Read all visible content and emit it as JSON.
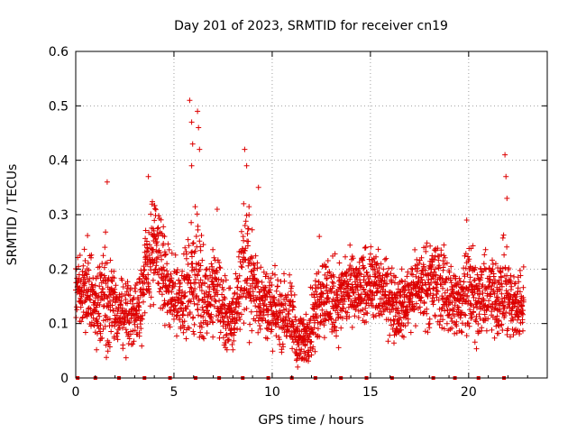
{
  "chart_data": {
    "type": "scatter",
    "title": "Day 201 of 2023, SRMTID for receiver cn19",
    "xlabel": "GPS time / hours",
    "ylabel": "SRMTID / TECUs",
    "xlim": [
      0,
      24
    ],
    "ylim": [
      0,
      0.6
    ],
    "xticks": [
      0,
      5,
      10,
      15,
      20
    ],
    "yticks": [
      0,
      0.1,
      0.2,
      0.3,
      0.4,
      0.5,
      0.6
    ],
    "xtick_labels": [
      "0",
      "5",
      "10",
      "15",
      "20"
    ],
    "ytick_labels": [
      "0",
      "0.1",
      "0.2",
      "0.3",
      "0.4",
      "0.5",
      "0.6"
    ],
    "grid": true,
    "marker": "+",
    "color": "#dd0000",
    "zero_markers_x": [
      0.1,
      1.0,
      2.2,
      3.5,
      4.8,
      6.1,
      7.3,
      8.5,
      9.8,
      11.0,
      12.2,
      13.5,
      14.8,
      16.1,
      18.2,
      19.3,
      20.5,
      21.8
    ],
    "envelope": {
      "x": [
        0.0,
        0.3,
        0.6,
        1.0,
        1.5,
        2.0,
        2.5,
        3.0,
        3.5,
        3.9,
        4.3,
        4.8,
        5.3,
        5.8,
        6.0,
        6.3,
        6.7,
        7.2,
        7.6,
        8.0,
        8.5,
        8.8,
        9.1,
        9.5,
        10.0,
        10.5,
        11.0,
        11.3,
        11.6,
        12.0,
        12.5,
        13.0,
        13.5,
        14.0,
        14.5,
        15.0,
        15.5,
        16.0,
        16.5,
        17.0,
        17.5,
        18.0,
        18.5,
        19.0,
        19.5,
        20.0,
        20.5,
        21.0,
        21.5,
        21.9,
        22.3,
        22.8
      ],
      "mean": [
        0.17,
        0.16,
        0.17,
        0.13,
        0.16,
        0.12,
        0.12,
        0.11,
        0.18,
        0.24,
        0.22,
        0.15,
        0.15,
        0.16,
        0.2,
        0.17,
        0.15,
        0.16,
        0.11,
        0.1,
        0.2,
        0.2,
        0.16,
        0.15,
        0.12,
        0.12,
        0.11,
        0.07,
        0.07,
        0.1,
        0.16,
        0.14,
        0.15,
        0.16,
        0.16,
        0.18,
        0.16,
        0.15,
        0.13,
        0.15,
        0.17,
        0.18,
        0.17,
        0.15,
        0.13,
        0.18,
        0.14,
        0.15,
        0.15,
        0.16,
        0.13,
        0.14
      ],
      "spread": [
        0.05,
        0.05,
        0.06,
        0.05,
        0.07,
        0.05,
        0.05,
        0.05,
        0.07,
        0.08,
        0.07,
        0.05,
        0.05,
        0.07,
        0.1,
        0.08,
        0.06,
        0.06,
        0.05,
        0.05,
        0.08,
        0.08,
        0.06,
        0.05,
        0.05,
        0.05,
        0.05,
        0.04,
        0.04,
        0.05,
        0.06,
        0.06,
        0.06,
        0.05,
        0.05,
        0.05,
        0.05,
        0.05,
        0.05,
        0.05,
        0.05,
        0.06,
        0.06,
        0.05,
        0.05,
        0.07,
        0.05,
        0.06,
        0.05,
        0.07,
        0.05,
        0.05
      ]
    },
    "peaks": [
      {
        "x": 1.6,
        "y": 0.36
      },
      {
        "x": 3.7,
        "y": 0.37
      },
      {
        "x": 5.8,
        "y": 0.51
      },
      {
        "x": 5.9,
        "y": 0.47
      },
      {
        "x": 5.95,
        "y": 0.43
      },
      {
        "x": 6.2,
        "y": 0.49
      },
      {
        "x": 6.25,
        "y": 0.46
      },
      {
        "x": 6.3,
        "y": 0.42
      },
      {
        "x": 5.9,
        "y": 0.39
      },
      {
        "x": 7.2,
        "y": 0.31
      },
      {
        "x": 8.6,
        "y": 0.42
      },
      {
        "x": 8.7,
        "y": 0.39
      },
      {
        "x": 8.55,
        "y": 0.32
      },
      {
        "x": 9.3,
        "y": 0.35
      },
      {
        "x": 12.4,
        "y": 0.26
      },
      {
        "x": 19.9,
        "y": 0.29
      },
      {
        "x": 21.85,
        "y": 0.41
      },
      {
        "x": 21.9,
        "y": 0.37
      },
      {
        "x": 21.95,
        "y": 0.33
      },
      {
        "x": 11.3,
        "y": 0.02
      }
    ]
  }
}
